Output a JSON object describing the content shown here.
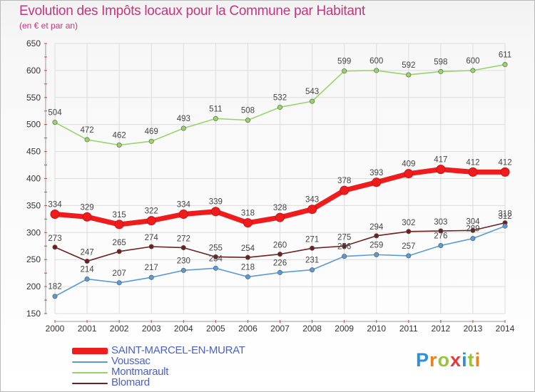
{
  "header": {
    "title": "Evolution des Impôts locaux pour la Commune par Habitant",
    "subtitle": "(en € et par an)"
  },
  "brand": {
    "text": "Proxiti",
    "letter_colors": [
      "#2f8fd6",
      "#e8831e",
      "#9ac33a",
      "#e23a3a",
      "#2f8fd6",
      "#9ac33a",
      "#e8831e"
    ]
  },
  "colors": {
    "title": "#c7357a",
    "grid": "#dcdcdc",
    "axis_text": "#333333"
  },
  "chart_data": {
    "type": "line",
    "title": "Evolution des Impôts locaux pour la Commune par Habitant",
    "subtitle": "(en € et par an)",
    "xlabel": "",
    "ylabel": "",
    "x": [
      "2000",
      "2001",
      "2002",
      "2003",
      "2004",
      "2005",
      "2006",
      "2007",
      "2008",
      "2009",
      "2010",
      "2011",
      "2012",
      "2013",
      "2014"
    ],
    "ylim": [
      150,
      650
    ],
    "yticks": [
      150,
      200,
      250,
      300,
      350,
      400,
      450,
      500,
      550,
      600,
      650
    ],
    "grid": true,
    "legend_position": "bottom-left",
    "series": [
      {
        "name": "SAINT-MARCEL-EN-MURAT",
        "color": "#ee1c1c",
        "values": [
          334,
          329,
          315,
          322,
          334,
          339,
          318,
          328,
          343,
          378,
          393,
          409,
          417,
          412,
          412
        ]
      },
      {
        "name": "Voussac",
        "color": "#5b9bd5",
        "values": [
          182,
          214,
          207,
          217,
          230,
          234,
          218,
          226,
          231,
          256,
          259,
          257,
          276,
          289,
          312
        ]
      },
      {
        "name": "Montmarault",
        "color": "#99d46b",
        "values": [
          504,
          472,
          462,
          469,
          493,
          511,
          508,
          532,
          543,
          599,
          600,
          592,
          598,
          600,
          611
        ]
      },
      {
        "name": "Blomard",
        "color": "#6e2020",
        "values": [
          273,
          247,
          265,
          274,
          272,
          255,
          254,
          260,
          271,
          275,
          294,
          302,
          303,
          304,
          318
        ]
      }
    ]
  }
}
